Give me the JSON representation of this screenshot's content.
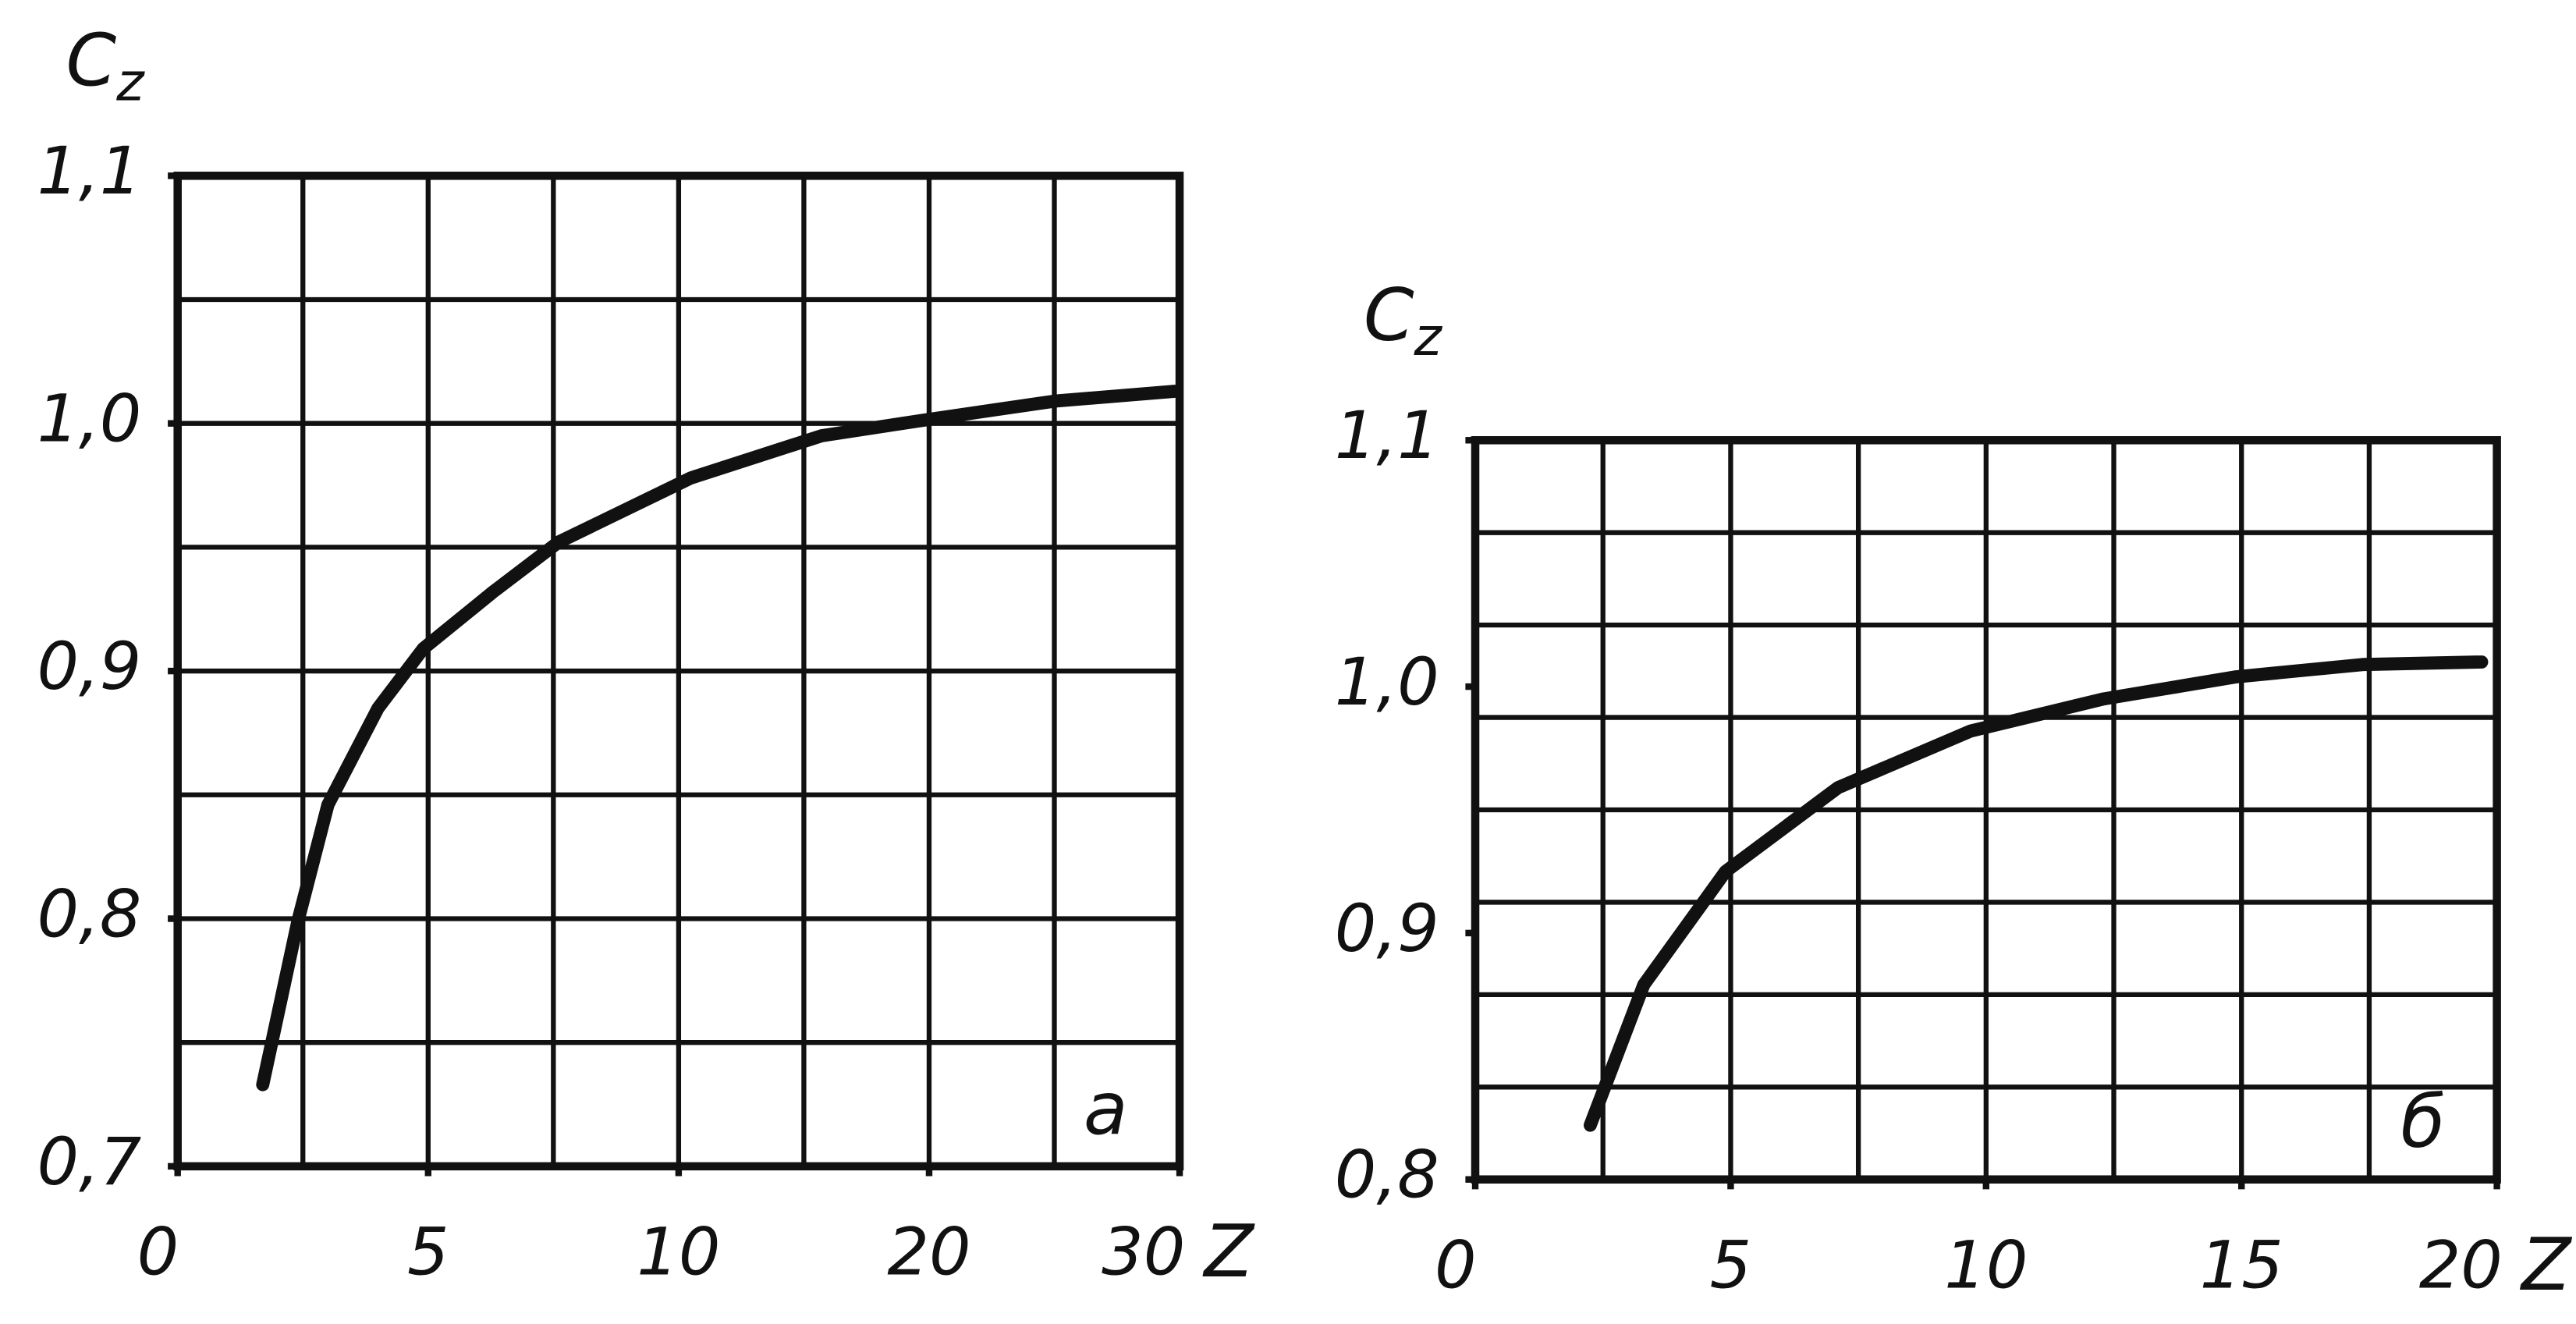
{
  "chart_data": [
    {
      "type": "line",
      "y_label": {
        "main": "C",
        "sub": "z"
      },
      "x_label": "Z",
      "panel": "а",
      "x": [
        1.7,
        2.4,
        3.0,
        4.0,
        4.9,
        6.3,
        7.6,
        10.5,
        15.7,
        19.6,
        25.0,
        29.8
      ],
      "series": [
        {
          "color": "#111111",
          "values": [
            0.733,
            0.799,
            0.846,
            0.885,
            0.909,
            0.932,
            0.952,
            0.978,
            0.995,
            1.001,
            1.009,
            1.013
          ]
        }
      ],
      "ylim": [
        0.7,
        1.1
      ],
      "yticks": [
        {
          "value": 0.7,
          "label": "0,7"
        },
        {
          "value": 0.8,
          "label": "0,8"
        },
        {
          "value": 0.9,
          "label": "0,9"
        },
        {
          "value": 1.0,
          "label": "1,0"
        },
        {
          "value": 1.1,
          "label": "1,1"
        }
      ],
      "xlim": [
        0,
        30
      ],
      "xticks": [
        0,
        5,
        10,
        20,
        30
      ],
      "grid": true
    },
    {
      "type": "line",
      "y_label": {
        "main": "C",
        "sub": "z"
      },
      "x_label": "Z",
      "panel": "б",
      "x": [
        2.25,
        3.3,
        4.9,
        7.1,
        9.7,
        12.3,
        14.9,
        17.4,
        19.7
      ],
      "series": [
        {
          "color": "#111111",
          "values": [
            0.822,
            0.879,
            0.925,
            0.959,
            0.982,
            0.995,
            1.004,
            1.009,
            1.01
          ]
        }
      ],
      "ylim": [
        0.8,
        1.1
      ],
      "yticks": [
        {
          "value": 0.8,
          "label": "0,8"
        },
        {
          "value": 0.9,
          "label": "0,9"
        },
        {
          "value": 1.0,
          "label": "1,0"
        },
        {
          "value": 1.1,
          "label": "1,1"
        }
      ],
      "xlim": [
        0,
        20
      ],
      "xticks": [
        0,
        5,
        10,
        15,
        20
      ],
      "grid": true
    }
  ]
}
